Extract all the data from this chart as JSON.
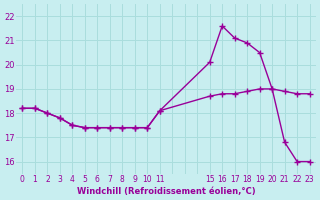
{
  "xlabel": "Windchill (Refroidissement éolien,°C)",
  "bg_color": "#c8eef0",
  "line_color": "#990099",
  "grid_color": "#aadddd",
  "ylim": [
    15.5,
    22.5
  ],
  "xlim": [
    -0.5,
    23.5
  ],
  "y_ticks": [
    16,
    17,
    18,
    19,
    20,
    21,
    22
  ],
  "x_ticks_all": [
    0,
    1,
    2,
    3,
    4,
    5,
    6,
    7,
    8,
    9,
    10,
    11,
    12,
    13,
    14,
    15,
    16,
    17,
    18,
    19,
    20,
    21,
    22,
    23
  ],
  "x_tick_labels_all": [
    "0",
    "1",
    "2",
    "3",
    "4",
    "5",
    "6",
    "7",
    "8",
    "9",
    "10",
    "11",
    "",
    "",
    "",
    "15",
    "16",
    "17",
    "18",
    "19",
    "20",
    "21",
    "22",
    "23"
  ],
  "series1_x": [
    0,
    1,
    2,
    3,
    4,
    5,
    6,
    7,
    8,
    9,
    10,
    11,
    15,
    16,
    17,
    18,
    19,
    20,
    21,
    22,
    23
  ],
  "series1_y": [
    18.2,
    18.2,
    18.0,
    17.8,
    17.5,
    17.4,
    17.4,
    17.4,
    17.4,
    17.4,
    17.4,
    18.1,
    18.7,
    18.8,
    18.8,
    18.9,
    19.0,
    19.0,
    18.9,
    18.8,
    18.8
  ],
  "series2_x": [
    0,
    1,
    2,
    3,
    4,
    5,
    6,
    7,
    8,
    9,
    10,
    11,
    15,
    16,
    17,
    18,
    19,
    20,
    21,
    22,
    23
  ],
  "series2_y": [
    18.2,
    18.2,
    18.0,
    17.8,
    17.5,
    17.4,
    17.4,
    17.4,
    17.4,
    17.4,
    17.4,
    18.1,
    20.1,
    21.6,
    21.1,
    20.9,
    20.5,
    19.0,
    16.8,
    16.0,
    16.0
  ]
}
